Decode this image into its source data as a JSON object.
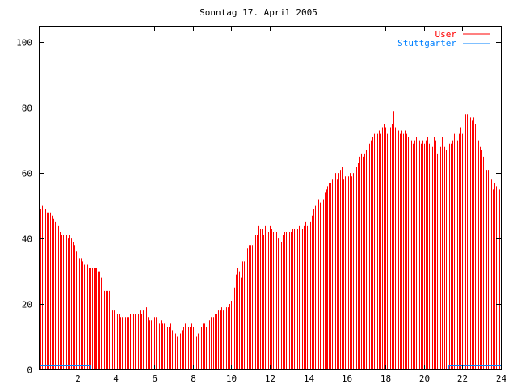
{
  "chart_data": {
    "type": "bar",
    "title": "Sonntag 17. April 2005",
    "xlabel": "",
    "ylabel": "",
    "xlim": [
      0,
      24
    ],
    "ylim": [
      0,
      105
    ],
    "x_ticks": [
      "2",
      "4",
      "6",
      "8",
      "10",
      "12",
      "14",
      "16",
      "18",
      "20",
      "22",
      "24"
    ],
    "y_ticks": [
      "0",
      "20",
      "40",
      "60",
      "80",
      "100"
    ],
    "legend_position": "top-right",
    "grid": false,
    "x_step_hours": 0.0833333,
    "series": [
      {
        "name": "User",
        "style": "impulses",
        "color": "#ff0000",
        "values": [
          50,
          49,
          50,
          50,
          49,
          48,
          48,
          48,
          47,
          46,
          45,
          44,
          44,
          42,
          41,
          41,
          40,
          41,
          40,
          41,
          40,
          39,
          38,
          36,
          35,
          34,
          34,
          33,
          32,
          33,
          32,
          31,
          31,
          31,
          31,
          31,
          31,
          30,
          30,
          28,
          28,
          24,
          24,
          24,
          24,
          18,
          18,
          18,
          17,
          17,
          17,
          16,
          16,
          16,
          16,
          16,
          16,
          17,
          17,
          17,
          17,
          17,
          17,
          18,
          17,
          18,
          18,
          19,
          16,
          15,
          15,
          15,
          16,
          16,
          15,
          14,
          15,
          14,
          14,
          13,
          13,
          13,
          14,
          12,
          12,
          11,
          10,
          11,
          11,
          12,
          13,
          14,
          13,
          13,
          13,
          14,
          13,
          12,
          10,
          11,
          12,
          13,
          14,
          14,
          13,
          14,
          15,
          16,
          16,
          16,
          17,
          17,
          18,
          18,
          19,
          18,
          18,
          19,
          19,
          20,
          21,
          22,
          25,
          29,
          31,
          30,
          28,
          33,
          33,
          33,
          37,
          38,
          38,
          38,
          40,
          41,
          41,
          44,
          43,
          43,
          41,
          44,
          44,
          42,
          44,
          43,
          42,
          42,
          42,
          40,
          40,
          39,
          41,
          42,
          42,
          42,
          42,
          42,
          43,
          43,
          42,
          43,
          44,
          44,
          43,
          44,
          45,
          44,
          44,
          45,
          47,
          49,
          50,
          49,
          52,
          51,
          50,
          52,
          54,
          55,
          56,
          57,
          57,
          58,
          59,
          60,
          58,
          60,
          61,
          62,
          58,
          59,
          58,
          59,
          60,
          59,
          60,
          62,
          62,
          63,
          65,
          66,
          65,
          66,
          67,
          68,
          69,
          70,
          71,
          72,
          73,
          72,
          73,
          72,
          74,
          75,
          74,
          72,
          73,
          74,
          75,
          79,
          74,
          75,
          73,
          72,
          73,
          72,
          73,
          72,
          71,
          72,
          70,
          69,
          70,
          71,
          68,
          70,
          69,
          70,
          69,
          70,
          71,
          69,
          70,
          68,
          71,
          70,
          66,
          66,
          68,
          71,
          70,
          68,
          67,
          68,
          69,
          69,
          70,
          72,
          71,
          70,
          72,
          74,
          72,
          74,
          78,
          78,
          78,
          77,
          76,
          77,
          75,
          73,
          70,
          68,
          67,
          65,
          63,
          61,
          61,
          61,
          58,
          55,
          57,
          56,
          55,
          55
        ]
      },
      {
        "name": "Stuttgarter",
        "style": "lines",
        "color": "#0080ff",
        "points": [
          [
            0,
            1
          ],
          [
            2.7,
            1
          ],
          [
            2.7,
            0
          ],
          [
            21.3,
            0
          ],
          [
            21.3,
            1
          ],
          [
            24,
            1
          ]
        ]
      }
    ]
  }
}
